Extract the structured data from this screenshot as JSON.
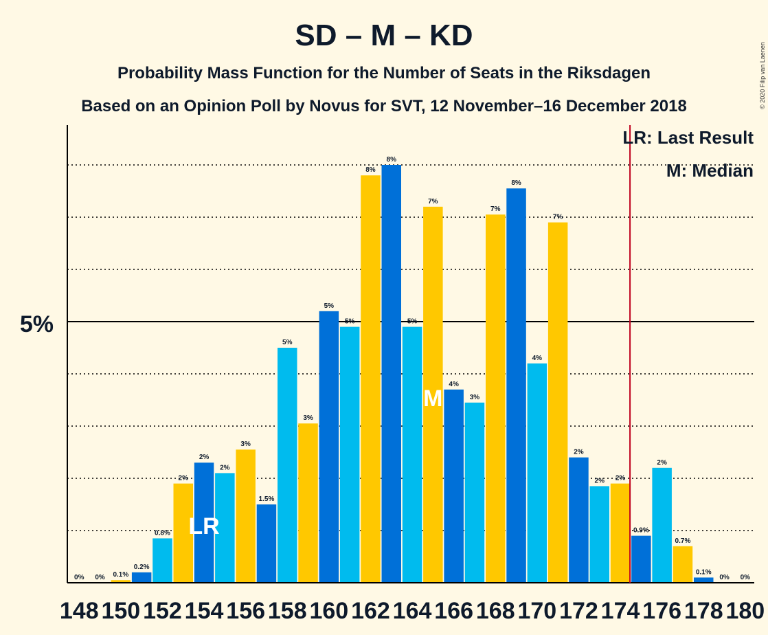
{
  "chart_data": {
    "type": "bar",
    "title": "SD – M – KD",
    "subtitle": "Probability Mass Function for the Number of Seats in the Riksdagen",
    "subtitle2": "Based on an Opinion Poll by Novus for SVT, 12 November–16 December 2018",
    "copyright": "© 2020 Filip van Laenen",
    "legend": {
      "last_result": "LR: Last Result",
      "median": "M: Median",
      "placement": "top-right"
    },
    "y_tick_label": "5%",
    "ylim": [
      0,
      8.7
    ],
    "grid": true,
    "x": [
      148,
      149,
      150,
      151,
      152,
      153,
      154,
      155,
      156,
      157,
      158,
      159,
      160,
      161,
      162,
      163,
      164,
      165,
      166,
      167,
      168,
      169,
      170,
      171,
      172,
      173,
      174,
      175,
      176,
      177,
      178,
      179,
      180
    ],
    "x_tick_labels": [
      "148",
      "150",
      "152",
      "154",
      "156",
      "158",
      "160",
      "162",
      "164",
      "166",
      "168",
      "170",
      "172",
      "174",
      "176",
      "178",
      "180"
    ],
    "values": [
      0,
      0,
      0.05,
      0.2,
      0.85,
      1.9,
      2.3,
      2.1,
      2.55,
      1.5,
      4.5,
      3.05,
      5.2,
      4.9,
      7.8,
      8.0,
      4.9,
      7.2,
      3.7,
      3.45,
      7.05,
      7.55,
      4.2,
      6.9,
      2.4,
      1.85,
      1.9,
      0.9,
      2.2,
      0.7,
      0.1,
      0,
      0
    ],
    "labels": [
      "0%",
      "0%",
      "0.1%",
      "0.2%",
      "0.8%",
      "2%",
      "2%",
      "2%",
      "3%",
      "1.5%",
      "5%",
      "3%",
      "5%",
      "5%",
      "8%",
      "8%",
      "5%",
      "7%",
      "4%",
      "3%",
      "7%",
      "8%",
      "4%",
      "7%",
      "2%",
      "2%",
      "2%",
      "0.9%",
      "2%",
      "0.7%",
      "0.1%",
      "0%",
      "0%"
    ],
    "colors": [
      "#0070D8",
      "#00BBEE",
      "#FFC800"
    ],
    "last_result_seat": 154,
    "last_result_label": "LR",
    "median_seat": 165,
    "median_label": "M",
    "threshold_seat": 175,
    "threshold_color": "#C0001E"
  }
}
